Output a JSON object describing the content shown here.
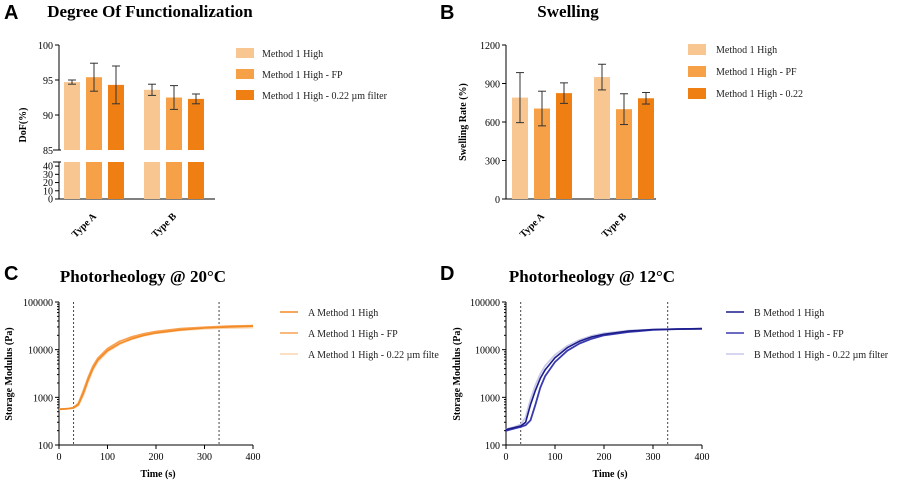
{
  "colors": {
    "light": "#f8c690",
    "mid": "#f6a148",
    "dark": "#ef7f12",
    "orange_line_1": "#f28a25",
    "orange_line_2": "#f7a050",
    "orange_line_3": "#fbd6b0",
    "blue_line_1": "#1c1c8a",
    "blue_line_2": "#3a3ab0",
    "blue_line_3": "#c9c9e8"
  },
  "panels": {
    "a": {
      "letter": "A"
    },
    "b": {
      "letter": "B"
    },
    "c": {
      "letter": "C"
    },
    "d": {
      "letter": "D"
    }
  },
  "chart_data": [
    {
      "id": "a",
      "type": "bar",
      "title": "Degree Of Functionalization",
      "xlabel": "",
      "ylabel": "DoF(%)",
      "categories": [
        "Type A",
        "Type B"
      ],
      "series": [
        {
          "name": "Method 1 High",
          "values": [
            94.7,
            93.6
          ],
          "errors": [
            0.3,
            0.8
          ]
        },
        {
          "name": "Method 1 High - FP",
          "values": [
            95.4,
            92.5
          ],
          "errors": [
            2.0,
            1.7
          ]
        },
        {
          "name": "Method 1 High - 0.22 µm filter",
          "values": [
            94.3,
            92.3
          ],
          "errors": [
            2.7,
            0.7
          ]
        }
      ],
      "ylim_upper": [
        85,
        100
      ],
      "yticks_upper": [
        "85",
        "90",
        "95",
        "100"
      ],
      "ylim_lower": [
        0,
        45
      ],
      "yticks_lower": [
        "0",
        "10",
        "20",
        "30",
        "40"
      ],
      "axis_break": true
    },
    {
      "id": "b",
      "type": "bar",
      "title": "Swelling",
      "xlabel": "",
      "ylabel": "Swelling Rate (%)",
      "categories": [
        "Type A",
        "Type B"
      ],
      "series": [
        {
          "name": "Method 1 High",
          "values": [
            790,
            950
          ],
          "errors": [
            195,
            100
          ]
        },
        {
          "name": "Method 1 High - PF",
          "values": [
            705,
            700
          ],
          "errors": [
            135,
            120
          ]
        },
        {
          "name": "Method 1 High - 0.22",
          "values": [
            825,
            785
          ],
          "errors": [
            80,
            45
          ]
        }
      ],
      "ylim": [
        0,
        1200
      ],
      "yticks": [
        "0",
        "300",
        "600",
        "900",
        "1200"
      ]
    },
    {
      "id": "c",
      "type": "line",
      "title": "Photorheology @ 20°C",
      "xlabel": "Time (s)",
      "ylabel": "Storage  Modulus  (Pa)",
      "yscale": "log",
      "xlim": [
        0,
        400
      ],
      "ylim": [
        100,
        100000
      ],
      "xticks": [
        "0",
        "100",
        "200",
        "300",
        "400"
      ],
      "yticks": [
        "100",
        "1000",
        "10000",
        "100000"
      ],
      "vlines": [
        30,
        330
      ],
      "series": [
        {
          "name": "A Method 1 High",
          "color_key": "orange_line_1",
          "x": [
            0,
            20,
            30,
            40,
            50,
            60,
            70,
            80,
            100,
            125,
            150,
            175,
            200,
            250,
            300,
            350,
            400
          ],
          "y": [
            560,
            580,
            600,
            700,
            1200,
            2300,
            4000,
            6000,
            9500,
            13500,
            17000,
            20000,
            22500,
            26000,
            28500,
            30000,
            31000
          ]
        },
        {
          "name": "A Method 1 High - FP",
          "color_key": "orange_line_2",
          "x": [
            0,
            20,
            30,
            40,
            50,
            60,
            70,
            80,
            100,
            125,
            150,
            175,
            200,
            250,
            300,
            350,
            400
          ],
          "y": [
            560,
            580,
            610,
            750,
            1350,
            2600,
            4500,
            6600,
            10500,
            15000,
            18500,
            21500,
            24000,
            27500,
            29500,
            31000,
            32000
          ]
        },
        {
          "name": "A Method 1 High - 0.22 µm filte",
          "color_key": "orange_line_3",
          "x": [
            0,
            20,
            30,
            40,
            50,
            60,
            70,
            80,
            100,
            125,
            150,
            175,
            200,
            250,
            300,
            350,
            400
          ],
          "y": [
            560,
            580,
            600,
            680,
            1100,
            2100,
            3700,
            5600,
            9000,
            13000,
            16500,
            19500,
            22000,
            25500,
            27500,
            28500,
            29000
          ]
        }
      ]
    },
    {
      "id": "d",
      "type": "line",
      "title": "Photorheology @ 12°C",
      "xlabel": "Time (s)",
      "ylabel": "Storage  Modulus  (Pa)",
      "yscale": "log",
      "xlim": [
        0,
        400
      ],
      "ylim": [
        100,
        100000
      ],
      "xticks": [
        "0",
        "100",
        "200",
        "300",
        "400"
      ],
      "yticks": [
        "100",
        "1000",
        "10000",
        "100000"
      ],
      "vlines": [
        30,
        330
      ],
      "series": [
        {
          "name": "B Method 1 High",
          "color_key": "blue_line_1",
          "x": [
            0,
            15,
            30,
            40,
            50,
            60,
            70,
            80,
            100,
            125,
            150,
            175,
            200,
            250,
            300,
            350,
            400
          ],
          "y": [
            210,
            230,
            250,
            300,
            700,
            1400,
            2500,
            3800,
            6800,
            11000,
            15000,
            18500,
            21000,
            24500,
            26500,
            27000,
            27500
          ]
        },
        {
          "name": "B Method 1 High - FP",
          "color_key": "blue_line_2",
          "x": [
            0,
            15,
            30,
            40,
            50,
            60,
            70,
            80,
            100,
            125,
            150,
            175,
            200,
            250,
            300,
            350,
            400
          ],
          "y": [
            200,
            220,
            240,
            260,
            330,
            700,
            1600,
            2800,
            5500,
            9500,
            13500,
            17000,
            20000,
            23500,
            26000,
            27000,
            27500
          ]
        },
        {
          "name": "B Method 1 High - 0.22 µm filter",
          "color_key": "blue_line_3",
          "x": [
            0,
            15,
            30,
            40,
            50,
            60,
            70,
            80,
            100,
            125,
            150,
            175,
            200,
            250,
            300,
            350,
            400
          ],
          "y": [
            215,
            235,
            270,
            380,
            900,
            1800,
            3100,
            4600,
            7800,
            12000,
            16000,
            19500,
            22000,
            25000,
            26500,
            27000,
            27000
          ]
        }
      ]
    }
  ]
}
